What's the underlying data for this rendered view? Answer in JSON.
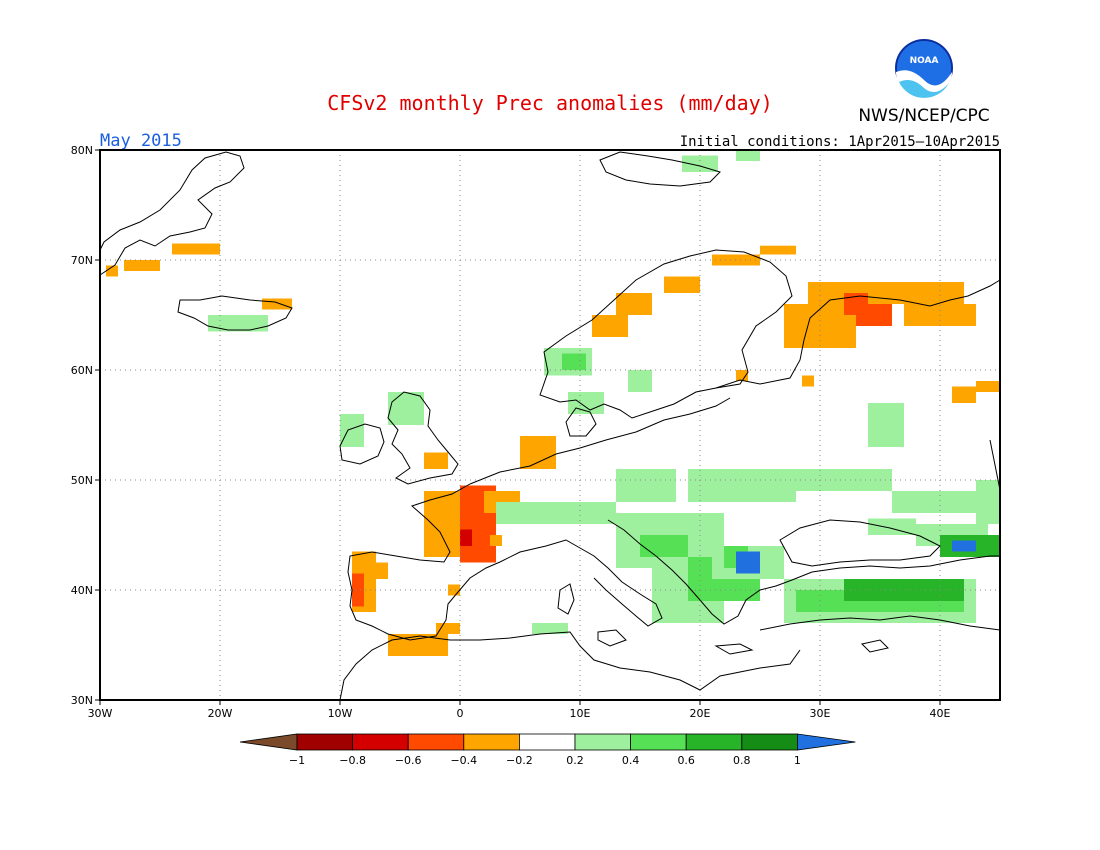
{
  "title": "CFSv2 monthly Prec anomalies (mm/day)",
  "month_label": "May 2015",
  "initial_conditions": "Initial conditions: 1Apr2015–10Apr2015",
  "agency": "NWS/NCEP/CPC",
  "logo_text": "NOAA",
  "colors": {
    "title": "#e00000",
    "month": "#1a5ee0",
    "land": "#000000"
  },
  "map": {
    "lat_labels": [
      "80N",
      "70N",
      "60N",
      "50N",
      "40N",
      "30N"
    ],
    "lon_labels": [
      "30W",
      "20W",
      "10W",
      "0",
      "10E",
      "20E",
      "30E",
      "40E"
    ]
  },
  "colorbar": {
    "tick_labels": [
      "−1",
      "−0.8",
      "−0.6",
      "−0.4",
      "−0.2",
      "0.2",
      "0.4",
      "0.6",
      "0.8",
      "1"
    ],
    "colors": [
      "#7b4a2a",
      "#a00000",
      "#d40000",
      "#ff4a00",
      "#ffa500",
      "#ffffff",
      "#9ef09e",
      "#55e055",
      "#28b428",
      "#158c15",
      "#2070e0"
    ]
  },
  "anomaly_cells": [
    {
      "lon": -29.5,
      "lat": 68.5,
      "w": 1,
      "h": 1,
      "c": "#ffa500"
    },
    {
      "lon": -28,
      "lat": 69,
      "w": 3,
      "h": 1,
      "c": "#ffa500"
    },
    {
      "lon": -24,
      "lat": 70.5,
      "w": 3,
      "h": 1,
      "c": "#ffa500"
    },
    {
      "lon": -21,
      "lat": 70.5,
      "w": 1,
      "h": 1,
      "c": "#ffa500"
    },
    {
      "lon": -21,
      "lat": 63.5,
      "w": 5,
      "h": 1.5,
      "c": "#9ef09e"
    },
    {
      "lon": -16.5,
      "lat": 65.5,
      "w": 2.5,
      "h": 1,
      "c": "#ffa500"
    },
    {
      "lon": -10,
      "lat": 53,
      "w": 2,
      "h": 3,
      "c": "#9ef09e"
    },
    {
      "lon": -6,
      "lat": 55,
      "w": 3,
      "h": 3,
      "c": "#9ef09e"
    },
    {
      "lon": -3,
      "lat": 51,
      "w": 2,
      "h": 1.5,
      "c": "#ffa500"
    },
    {
      "lon": -3,
      "lat": 43,
      "w": 3,
      "h": 6,
      "c": "#ffa500"
    },
    {
      "lon": 0,
      "lat": 42.5,
      "w": 3,
      "h": 7,
      "c": "#ff4a00"
    },
    {
      "lon": 0,
      "lat": 44,
      "w": 1,
      "h": 1.5,
      "c": "#d40000"
    },
    {
      "lon": 2,
      "lat": 47,
      "w": 3,
      "h": 2,
      "c": "#ffa500"
    },
    {
      "lon": 2.5,
      "lat": 44,
      "w": 1,
      "h": 1,
      "c": "#ffa500"
    },
    {
      "lon": 5,
      "lat": 51,
      "w": 3,
      "h": 3,
      "c": "#ffa500"
    },
    {
      "lon": -9,
      "lat": 38,
      "w": 2,
      "h": 5.5,
      "c": "#ffa500"
    },
    {
      "lon": -9,
      "lat": 38.5,
      "w": 1,
      "h": 3,
      "c": "#ff4a00"
    },
    {
      "lon": -7,
      "lat": 41,
      "w": 1,
      "h": 1.5,
      "c": "#ffa500"
    },
    {
      "lon": -6,
      "lat": 34,
      "w": 5,
      "h": 2,
      "c": "#ffa500"
    },
    {
      "lon": -2,
      "lat": 36,
      "w": 2,
      "h": 1,
      "c": "#ffa500"
    },
    {
      "lon": -1,
      "lat": 39.5,
      "w": 1,
      "h": 1,
      "c": "#ffa500"
    },
    {
      "lon": 6,
      "lat": 36,
      "w": 3,
      "h": 1,
      "c": "#9ef09e"
    },
    {
      "lon": 7,
      "lat": 59.5,
      "w": 4,
      "h": 2.5,
      "c": "#9ef09e"
    },
    {
      "lon": 8.5,
      "lat": 60,
      "w": 2,
      "h": 1.5,
      "c": "#55e055"
    },
    {
      "lon": 9,
      "lat": 56,
      "w": 3,
      "h": 2,
      "c": "#9ef09e"
    },
    {
      "lon": 14,
      "lat": 58,
      "w": 2,
      "h": 2,
      "c": "#9ef09e"
    },
    {
      "lon": 11,
      "lat": 63,
      "w": 3,
      "h": 2,
      "c": "#ffa500"
    },
    {
      "lon": 13,
      "lat": 65,
      "w": 3,
      "h": 2,
      "c": "#ffa500"
    },
    {
      "lon": 17,
      "lat": 67,
      "w": 3,
      "h": 1.5,
      "c": "#ffa500"
    },
    {
      "lon": 21,
      "lat": 69.5,
      "w": 4,
      "h": 1,
      "c": "#ffa500"
    },
    {
      "lon": 25,
      "lat": 70.5,
      "w": 3,
      "h": 0.8,
      "c": "#ffa500"
    },
    {
      "lon": 18.5,
      "lat": 78,
      "w": 3,
      "h": 1.5,
      "c": "#9ef09e"
    },
    {
      "lon": 23,
      "lat": 79,
      "w": 2,
      "h": 1,
      "c": "#9ef09e"
    },
    {
      "lon": 27,
      "lat": 62,
      "w": 6,
      "h": 4,
      "c": "#ffa500"
    },
    {
      "lon": 29,
      "lat": 64,
      "w": 6,
      "h": 4,
      "c": "#ffa500"
    },
    {
      "lon": 32,
      "lat": 65,
      "w": 3,
      "h": 2,
      "c": "#ff4a00"
    },
    {
      "lon": 33,
      "lat": 64,
      "w": 3,
      "h": 2,
      "c": "#ff4a00"
    },
    {
      "lon": 34,
      "lat": 66,
      "w": 8,
      "h": 2,
      "c": "#ffa500"
    },
    {
      "lon": 37,
      "lat": 64,
      "w": 6,
      "h": 2,
      "c": "#ffa500"
    },
    {
      "lon": 41,
      "lat": 57,
      "w": 2,
      "h": 1.5,
      "c": "#ffa500"
    },
    {
      "lon": 43,
      "lat": 58,
      "w": 2,
      "h": 1,
      "c": "#ffa500"
    },
    {
      "lon": 23,
      "lat": 59,
      "w": 1,
      "h": 1,
      "c": "#ffa500"
    },
    {
      "lon": 28.5,
      "lat": 58.5,
      "w": 1,
      "h": 1,
      "c": "#ffa500"
    },
    {
      "lon": 34,
      "lat": 53,
      "w": 3,
      "h": 4,
      "c": "#9ef09e"
    },
    {
      "lon": 13,
      "lat": 48,
      "w": 5,
      "h": 3,
      "c": "#9ef09e"
    },
    {
      "lon": 19,
      "lat": 48,
      "w": 9,
      "h": 3,
      "c": "#9ef09e"
    },
    {
      "lon": 28,
      "lat": 49,
      "w": 8,
      "h": 2,
      "c": "#9ef09e"
    },
    {
      "lon": 36,
      "lat": 47,
      "w": 7,
      "h": 2,
      "c": "#9ef09e"
    },
    {
      "lon": 3,
      "lat": 46,
      "w": 10,
      "h": 2,
      "c": "#9ef09e"
    },
    {
      "lon": 13,
      "lat": 42,
      "w": 9,
      "h": 5,
      "c": "#9ef09e"
    },
    {
      "lon": 15,
      "lat": 43,
      "w": 4,
      "h": 2,
      "c": "#55e055"
    },
    {
      "lon": 16,
      "lat": 37,
      "w": 6,
      "h": 5,
      "c": "#9ef09e"
    },
    {
      "lon": 19,
      "lat": 39,
      "w": 6,
      "h": 4,
      "c": "#55e055"
    },
    {
      "lon": 21,
      "lat": 41,
      "w": 6,
      "h": 3,
      "c": "#9ef09e"
    },
    {
      "lon": 22,
      "lat": 42,
      "w": 2,
      "h": 2,
      "c": "#55e055"
    },
    {
      "lon": 23,
      "lat": 41.5,
      "w": 2,
      "h": 2,
      "c": "#2070e0"
    },
    {
      "lon": 27,
      "lat": 37,
      "w": 16,
      "h": 4,
      "c": "#9ef09e"
    },
    {
      "lon": 28,
      "lat": 38,
      "w": 14,
      "h": 2,
      "c": "#55e055"
    },
    {
      "lon": 32,
      "lat": 39,
      "w": 10,
      "h": 2,
      "c": "#28b428"
    },
    {
      "lon": 38,
      "lat": 44,
      "w": 6,
      "h": 2,
      "c": "#9ef09e"
    },
    {
      "lon": 40,
      "lat": 43,
      "w": 5,
      "h": 2,
      "c": "#28b428"
    },
    {
      "lon": 41,
      "lat": 43.5,
      "w": 2,
      "h": 1,
      "c": "#2070e0"
    },
    {
      "lon": 43,
      "lat": 46,
      "w": 2,
      "h": 4,
      "c": "#9ef09e"
    },
    {
      "lon": 34,
      "lat": 45,
      "w": 4,
      "h": 1.5,
      "c": "#9ef09e"
    }
  ]
}
